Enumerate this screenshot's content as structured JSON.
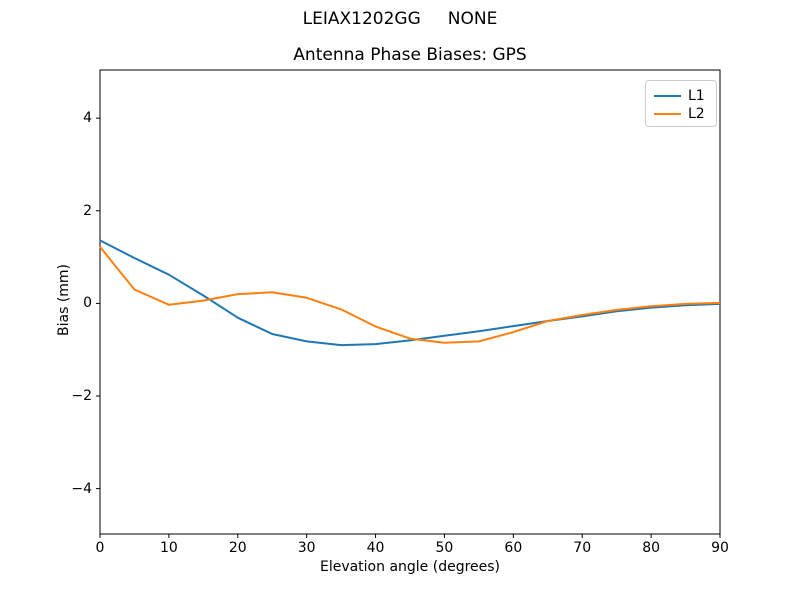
{
  "suptitle": "LEIAX1202GG     NONE",
  "chart_data": {
    "type": "line",
    "title": "Antenna Phase Biases: GPS",
    "xlabel": "Elevation angle (degrees)",
    "ylabel": "Bias (mm)",
    "xlim": [
      0,
      90
    ],
    "ylim": [
      -4.98,
      5.04
    ],
    "xticks": [
      0,
      10,
      20,
      30,
      40,
      50,
      60,
      70,
      80,
      90
    ],
    "yticks": [
      -4,
      -2,
      0,
      2,
      4
    ],
    "grid": false,
    "legend_position": "upper right",
    "x": [
      0,
      5,
      10,
      15,
      20,
      25,
      30,
      35,
      40,
      45,
      50,
      55,
      60,
      65,
      70,
      75,
      80,
      85,
      90
    ],
    "series": [
      {
        "name": "L1",
        "color": "#1f77b4",
        "values": [
          1.36,
          0.98,
          0.62,
          0.17,
          -0.31,
          -0.66,
          -0.82,
          -0.9,
          -0.88,
          -0.8,
          -0.7,
          -0.6,
          -0.49,
          -0.38,
          -0.28,
          -0.17,
          -0.09,
          -0.04,
          -0.01
        ]
      },
      {
        "name": "L2",
        "color": "#ff7f0e",
        "values": [
          1.22,
          0.3,
          -0.03,
          0.06,
          0.2,
          0.24,
          0.12,
          -0.13,
          -0.5,
          -0.76,
          -0.85,
          -0.82,
          -0.62,
          -0.38,
          -0.25,
          -0.14,
          -0.06,
          -0.01,
          0.01
        ]
      }
    ]
  }
}
